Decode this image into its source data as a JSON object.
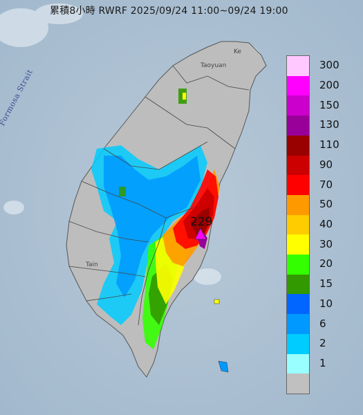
{
  "title": "累積8小時 RWRF 2025/09/24 11:00~09/24 19:00",
  "max_value": "229",
  "labels": {
    "strait": "Formosa Strait",
    "taoyuan": "Taoyuan",
    "tainan": "Tain",
    "keelung": "Ke"
  },
  "legend": [
    {
      "label": "300",
      "color": "#ffc8ff"
    },
    {
      "label": "200",
      "color": "#ff00ff"
    },
    {
      "label": "150",
      "color": "#cc00cc"
    },
    {
      "label": "130",
      "color": "#990099"
    },
    {
      "label": "110",
      "color": "#990000"
    },
    {
      "label": "90",
      "color": "#cc0000"
    },
    {
      "label": "70",
      "color": "#ff0000"
    },
    {
      "label": "50",
      "color": "#ff9900"
    },
    {
      "label": "40",
      "color": "#ffcc00"
    },
    {
      "label": "30",
      "color": "#ffff00"
    },
    {
      "label": "20",
      "color": "#33ff00"
    },
    {
      "label": "15",
      "color": "#339900"
    },
    {
      "label": "10",
      "color": "#0066ff"
    },
    {
      "label": "6",
      "color": "#0099ff"
    },
    {
      "label": "2",
      "color": "#00ccff"
    },
    {
      "label": "1",
      "color": "#99ffff"
    },
    {
      "label": "",
      "color": "#c0c0c0"
    }
  ]
}
